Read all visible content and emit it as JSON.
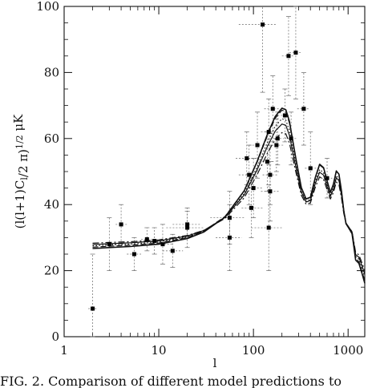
{
  "caption": "FIG. 2. Comparison of different model predictions to",
  "chart_data": {
    "type": "scatter",
    "xlabel": "l",
    "ylabel": "(l(l+1)C_l/2 π)^1/2 μK",
    "xscale": "log",
    "xlim": [
      1,
      1500
    ],
    "ylim": [
      0,
      100
    ],
    "xticks": [
      1,
      10,
      100,
      1000
    ],
    "xtick_labels": [
      "1",
      "10",
      "100",
      "1000"
    ],
    "yticks": [
      0,
      20,
      40,
      60,
      80,
      100
    ],
    "ytick_labels": [
      "0",
      "20",
      "40",
      "60",
      "80",
      "100"
    ],
    "grid": false,
    "legend": "none",
    "points": [
      {
        "l": 2,
        "y": 8.5,
        "l_lo": 1.8,
        "l_hi": 2.2,
        "y_lo": 0,
        "y_hi": 25
      },
      {
        "l": 3,
        "y": 28,
        "l_lo": 2.5,
        "l_hi": 3.5,
        "y_lo": 20,
        "y_hi": 36
      },
      {
        "l": 4,
        "y": 34,
        "l_lo": 3.5,
        "l_hi": 4.6,
        "y_lo": 28,
        "y_hi": 40
      },
      {
        "l": 5.5,
        "y": 25,
        "l_lo": 4.6,
        "l_hi": 6.5,
        "y_lo": 20,
        "y_hi": 30
      },
      {
        "l": 7.5,
        "y": 29.5,
        "l_lo": 6.5,
        "l_hi": 9,
        "y_lo": 26,
        "y_hi": 33
      },
      {
        "l": 9,
        "y": 29,
        "l_lo": 7,
        "l_hi": 11,
        "y_lo": 25,
        "y_hi": 33
      },
      {
        "l": 11,
        "y": 28,
        "l_lo": 9,
        "l_hi": 14,
        "y_lo": 22,
        "y_hi": 34
      },
      {
        "l": 14,
        "y": 26,
        "l_lo": 11,
        "l_hi": 18,
        "y_lo": 21,
        "y_hi": 31
      },
      {
        "l": 20,
        "y": 33,
        "l_lo": 12,
        "l_hi": 30,
        "y_lo": 27,
        "y_hi": 39
      },
      {
        "l": 20,
        "y": 34,
        "l_lo": 14,
        "l_hi": 28,
        "y_lo": 30,
        "y_hi": 38
      },
      {
        "l": 56,
        "y": 30,
        "l_lo": 40,
        "l_hi": 75,
        "y_lo": 20,
        "y_hi": 40
      },
      {
        "l": 56,
        "y": 36,
        "l_lo": 35,
        "l_hi": 80,
        "y_lo": 28,
        "y_hi": 44
      },
      {
        "l": 85,
        "y": 54,
        "l_lo": 65,
        "l_hi": 110,
        "y_lo": 46,
        "y_hi": 62
      },
      {
        "l": 90,
        "y": 49,
        "l_lo": 70,
        "l_hi": 110,
        "y_lo": 40,
        "y_hi": 58
      },
      {
        "l": 95,
        "y": 39,
        "l_lo": 75,
        "l_hi": 125,
        "y_lo": 30,
        "y_hi": 48
      },
      {
        "l": 100,
        "y": 45,
        "l_lo": 80,
        "l_hi": 125,
        "y_lo": 36,
        "y_hi": 54
      },
      {
        "l": 110,
        "y": 58,
        "l_lo": 90,
        "l_hi": 130,
        "y_lo": 48,
        "y_hi": 68
      },
      {
        "l": 125,
        "y": 94.5,
        "l_lo": 70,
        "l_hi": 175,
        "y_lo": 74,
        "y_hi": 113
      },
      {
        "l": 140,
        "y": 53,
        "l_lo": 115,
        "l_hi": 170,
        "y_lo": 44,
        "y_hi": 62
      },
      {
        "l": 145,
        "y": 62,
        "l_lo": 120,
        "l_hi": 175,
        "y_lo": 52,
        "y_hi": 72
      },
      {
        "l": 145,
        "y": 33,
        "l_lo": 95,
        "l_hi": 200,
        "y_lo": 20,
        "y_hi": 46
      },
      {
        "l": 150,
        "y": 49,
        "l_lo": 125,
        "l_hi": 180,
        "y_lo": 40,
        "y_hi": 58
      },
      {
        "l": 150,
        "y": 44,
        "l_lo": 120,
        "l_hi": 185,
        "y_lo": 35,
        "y_hi": 53
      },
      {
        "l": 160,
        "y": 69,
        "l_lo": 130,
        "l_hi": 190,
        "y_lo": 59,
        "y_hi": 79
      },
      {
        "l": 175,
        "y": 58,
        "l_lo": 145,
        "l_hi": 210,
        "y_lo": 50,
        "y_hi": 66
      },
      {
        "l": 180,
        "y": 60,
        "l_lo": 150,
        "l_hi": 210,
        "y_lo": 52,
        "y_hi": 68
      },
      {
        "l": 215,
        "y": 67,
        "l_lo": 180,
        "l_hi": 250,
        "y_lo": 59,
        "y_hi": 75
      },
      {
        "l": 235,
        "y": 85,
        "l_lo": 200,
        "l_hi": 270,
        "y_lo": 73,
        "y_hi": 97
      },
      {
        "l": 250,
        "y": 60,
        "l_lo": 215,
        "l_hi": 290,
        "y_lo": 52,
        "y_hi": 68
      },
      {
        "l": 280,
        "y": 86,
        "l_lo": 240,
        "l_hi": 320,
        "y_lo": 72,
        "y_hi": 100
      },
      {
        "l": 340,
        "y": 69,
        "l_lo": 290,
        "l_hi": 390,
        "y_lo": 58,
        "y_hi": 80
      },
      {
        "l": 400,
        "y": 51,
        "l_lo": 350,
        "l_hi": 460,
        "y_lo": 40,
        "y_hi": 62
      },
      {
        "l": 600,
        "y": 48,
        "l_lo": 520,
        "l_hi": 680,
        "y_lo": 42,
        "y_hi": 54
      }
    ],
    "series": [
      {
        "style": "solid",
        "peak": 70
      },
      {
        "style": "dashed",
        "peak": 69
      },
      {
        "style": "dotted",
        "peak": 66
      },
      {
        "style": "solid",
        "peak": 64
      },
      {
        "style": "dashdot",
        "peak": 61
      }
    ],
    "curve_shape": {
      "l": [
        2,
        3,
        5,
        10,
        20,
        30,
        50,
        80,
        110,
        140,
        170,
        200,
        220,
        240,
        280,
        320,
        360,
        400,
        450,
        500,
        550,
        600,
        650,
        700,
        750,
        800,
        850,
        900,
        950,
        1000,
        1050,
        1100,
        1150,
        1200,
        1300,
        1400,
        1500
      ],
      "y_at_peak_70": [
        27.5,
        27.8,
        28.1,
        28.8,
        30.5,
        32.5,
        37,
        45,
        54,
        62,
        67.5,
        70,
        69.5,
        66,
        55,
        46,
        42.5,
        43,
        49,
        53,
        52,
        48,
        44.5,
        47,
        51,
        50,
        45,
        39,
        35,
        34,
        33,
        32,
        28,
        24,
        23,
        20,
        17
      ]
    }
  }
}
